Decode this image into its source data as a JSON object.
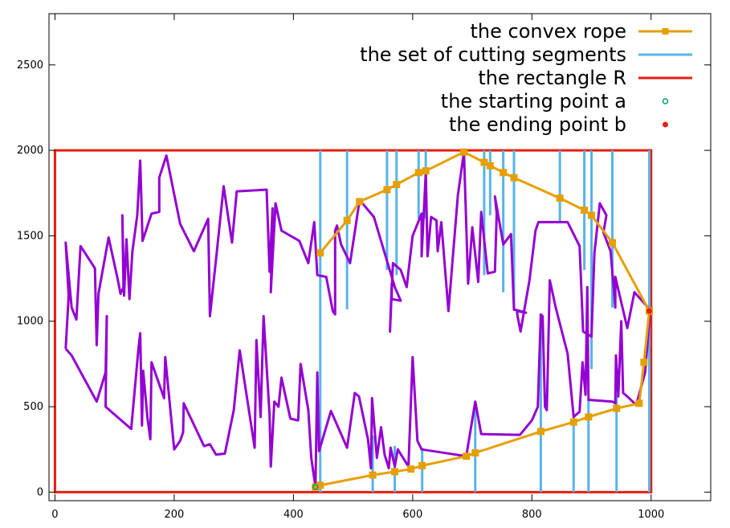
{
  "chart_data": {
    "type": "line",
    "xlim": [
      -10,
      1100
    ],
    "ylim": [
      -50,
      2800
    ],
    "x_ticks": [
      0,
      200,
      400,
      600,
      800,
      1000
    ],
    "y_ticks": [
      0,
      500,
      1000,
      1500,
      2000,
      2500
    ],
    "grid": false,
    "legend_position": "top-right",
    "colors": {
      "rope": "#e69f00",
      "segments": "#56b4e9",
      "rectangle": "#e51e10",
      "polygon": "#9400d3",
      "start": "#009e73",
      "end": "#e51e10"
    },
    "legend": [
      {
        "label": "the convex rope",
        "kind": "line-square"
      },
      {
        "label": "the set of cutting segments",
        "kind": "line"
      },
      {
        "label": "the rectangle R",
        "kind": "line"
      },
      {
        "label": "the starting point a",
        "kind": "open-circle"
      },
      {
        "label": "the ending point b",
        "kind": "dot"
      }
    ],
    "rectangle": {
      "x0": 0,
      "y0": 0,
      "x1": 1000,
      "y1": 2000
    },
    "polygon_upper": [
      [
        18,
        840
      ],
      [
        23,
        1150
      ],
      [
        18,
        1460
      ],
      [
        28,
        1080
      ],
      [
        36,
        1010
      ],
      [
        43,
        1440
      ],
      [
        67,
        1310
      ],
      [
        70,
        860
      ],
      [
        73,
        1160
      ],
      [
        90,
        1490
      ],
      [
        105,
        1250
      ],
      [
        110,
        1160
      ],
      [
        115,
        1200
      ],
      [
        113,
        1620
      ],
      [
        116,
        1150
      ],
      [
        120,
        1480
      ],
      [
        125,
        1130
      ],
      [
        130,
        1410
      ],
      [
        138,
        1620
      ],
      [
        143,
        1940
      ],
      [
        147,
        1470
      ],
      [
        162,
        1630
      ],
      [
        175,
        1640
      ],
      [
        175,
        1840
      ],
      [
        187,
        1970
      ],
      [
        210,
        1570
      ],
      [
        233,
        1410
      ],
      [
        257,
        1600
      ],
      [
        260,
        1030
      ],
      [
        272,
        1420
      ],
      [
        283,
        1790
      ],
      [
        297,
        1460
      ],
      [
        305,
        1760
      ],
      [
        355,
        1770
      ],
      [
        360,
        1290
      ],
      [
        365,
        1660
      ],
      [
        362,
        1170
      ],
      [
        370,
        1690
      ],
      [
        380,
        1530
      ],
      [
        410,
        1470
      ],
      [
        425,
        1340
      ],
      [
        435,
        1580
      ],
      [
        440,
        1270
      ],
      [
        455,
        1260
      ],
      [
        466,
        1060
      ],
      [
        470,
        1040
      ],
      [
        470,
        1530
      ],
      [
        473,
        1560
      ],
      [
        480,
        1450
      ],
      [
        495,
        1340
      ],
      [
        511,
        1710
      ],
      [
        535,
        1610
      ],
      [
        570,
        1200
      ],
      [
        580,
        1120
      ],
      [
        565,
        1130
      ],
      [
        565,
        1220
      ],
      [
        562,
        940
      ],
      [
        567,
        1340
      ],
      [
        580,
        1300
      ],
      [
        590,
        1200
      ],
      [
        600,
        1500
      ],
      [
        615,
        1630
      ],
      [
        615,
        1380
      ],
      [
        622,
        1870
      ],
      [
        625,
        1380
      ],
      [
        631,
        1610
      ],
      [
        640,
        1590
      ],
      [
        642,
        1410
      ],
      [
        648,
        1580
      ],
      [
        660,
        1060
      ],
      [
        676,
        1740
      ],
      [
        686,
        1990
      ],
      [
        693,
        1220
      ],
      [
        700,
        1550
      ],
      [
        710,
        1230
      ],
      [
        715,
        1640
      ],
      [
        726,
        1280
      ],
      [
        738,
        1290
      ],
      [
        741,
        1630
      ],
      [
        738,
        1730
      ],
      [
        752,
        1450
      ],
      [
        765,
        1510
      ],
      [
        770,
        1070
      ],
      [
        790,
        1050
      ],
      [
        775,
        1060
      ],
      [
        776,
        1030
      ],
      [
        781,
        940
      ],
      [
        796,
        1240
      ],
      [
        806,
        1530
      ],
      [
        811,
        1580
      ],
      [
        860,
        1580
      ],
      [
        880,
        1440
      ],
      [
        886,
        940
      ],
      [
        900,
        910
      ],
      [
        905,
        1400
      ],
      [
        914,
        1690
      ],
      [
        925,
        1620
      ],
      [
        920,
        1520
      ],
      [
        932,
        1410
      ],
      [
        940,
        1080
      ],
      [
        940,
        1260
      ],
      [
        960,
        960
      ],
      [
        972,
        1170
      ],
      [
        1000,
        1060
      ]
    ],
    "polygon_lower": [
      [
        18,
        840
      ],
      [
        28,
        800
      ],
      [
        70,
        530
      ],
      [
        85,
        700
      ],
      [
        87,
        1030
      ],
      [
        85,
        500
      ],
      [
        128,
        370
      ],
      [
        140,
        840
      ],
      [
        143,
        930
      ],
      [
        146,
        390
      ],
      [
        148,
        710
      ],
      [
        155,
        440
      ],
      [
        160,
        310
      ],
      [
        162,
        760
      ],
      [
        183,
        550
      ],
      [
        185,
        790
      ],
      [
        200,
        250
      ],
      [
        210,
        300
      ],
      [
        215,
        350
      ],
      [
        216,
        520
      ],
      [
        250,
        270
      ],
      [
        260,
        280
      ],
      [
        270,
        220
      ],
      [
        285,
        225
      ],
      [
        300,
        480
      ],
      [
        310,
        830
      ],
      [
        335,
        260
      ],
      [
        338,
        890
      ],
      [
        345,
        440
      ],
      [
        350,
        1030
      ],
      [
        360,
        450
      ],
      [
        362,
        150
      ],
      [
        368,
        530
      ],
      [
        375,
        500
      ],
      [
        380,
        670
      ],
      [
        395,
        430
      ],
      [
        408,
        420
      ],
      [
        412,
        750
      ],
      [
        425,
        480
      ],
      [
        430,
        200
      ],
      [
        437,
        30
      ],
      [
        440,
        700
      ],
      [
        443,
        240
      ],
      [
        463,
        475
      ],
      [
        490,
        260
      ],
      [
        503,
        580
      ],
      [
        510,
        560
      ],
      [
        525,
        310
      ],
      [
        530,
        140
      ],
      [
        532,
        550
      ],
      [
        540,
        200
      ],
      [
        547,
        380
      ],
      [
        553,
        220
      ],
      [
        560,
        140
      ],
      [
        563,
        260
      ],
      [
        570,
        150
      ],
      [
        575,
        250
      ],
      [
        593,
        150
      ],
      [
        600,
        790
      ],
      [
        608,
        300
      ],
      [
        615,
        250
      ],
      [
        690,
        210
      ],
      [
        705,
        530
      ],
      [
        715,
        340
      ],
      [
        780,
        335
      ],
      [
        800,
        420
      ],
      [
        810,
        500
      ],
      [
        815,
        1040
      ],
      [
        818,
        1030
      ],
      [
        822,
        500
      ],
      [
        825,
        480
      ],
      [
        830,
        1240
      ],
      [
        840,
        1080
      ],
      [
        860,
        810
      ],
      [
        870,
        440
      ],
      [
        880,
        470
      ],
      [
        885,
        760
      ],
      [
        890,
        570
      ],
      [
        893,
        1200
      ],
      [
        895,
        540
      ],
      [
        935,
        530
      ],
      [
        940,
        520
      ],
      [
        941,
        800
      ],
      [
        945,
        560
      ],
      [
        950,
        1000
      ],
      [
        953,
        580
      ],
      [
        960,
        560
      ],
      [
        975,
        510
      ],
      [
        990,
        700
      ],
      [
        998,
        1050
      ],
      [
        1000,
        1060
      ]
    ],
    "convex_rope": [
      [
        437,
        30
      ],
      [
        445,
        40
      ],
      [
        533,
        100
      ],
      [
        570,
        120
      ],
      [
        597,
        135
      ],
      [
        616,
        155
      ],
      [
        690,
        210
      ],
      [
        705,
        230
      ],
      [
        815,
        355
      ],
      [
        870,
        410
      ],
      [
        895,
        440
      ],
      [
        942,
        490
      ],
      [
        980,
        520
      ],
      [
        988,
        760
      ],
      [
        997,
        1060
      ],
      [
        935,
        1460
      ],
      [
        900,
        1620
      ],
      [
        888,
        1650
      ],
      [
        847,
        1720
      ],
      [
        770,
        1840
      ],
      [
        752,
        1870
      ],
      [
        730,
        1910
      ],
      [
        720,
        1930
      ],
      [
        686,
        1990
      ],
      [
        622,
        1880
      ],
      [
        610,
        1870
      ],
      [
        573,
        1800
      ],
      [
        557,
        1770
      ],
      [
        511,
        1700
      ],
      [
        490,
        1590
      ],
      [
        445,
        1400
      ]
    ],
    "cutting_segments": [
      {
        "x": 445,
        "y0": 0,
        "y1": 2000
      },
      {
        "x": 490,
        "y0": 1070,
        "y1": 2000
      },
      {
        "x": 533,
        "y0": 0,
        "y1": 330
      },
      {
        "x": 557,
        "y0": 1300,
        "y1": 2000
      },
      {
        "x": 573,
        "y0": 1270,
        "y1": 2000
      },
      {
        "x": 570,
        "y0": 0,
        "y1": 270
      },
      {
        "x": 610,
        "y0": 1600,
        "y1": 2000
      },
      {
        "x": 616,
        "y0": 0,
        "y1": 260
      },
      {
        "x": 622,
        "y0": 1600,
        "y1": 2000
      },
      {
        "x": 705,
        "y0": 0,
        "y1": 500
      },
      {
        "x": 720,
        "y0": 1270,
        "y1": 2000
      },
      {
        "x": 730,
        "y0": 1620,
        "y1": 2000
      },
      {
        "x": 752,
        "y0": 1170,
        "y1": 2000
      },
      {
        "x": 770,
        "y0": 1060,
        "y1": 2000
      },
      {
        "x": 815,
        "y0": 0,
        "y1": 1040
      },
      {
        "x": 847,
        "y0": 1580,
        "y1": 2000
      },
      {
        "x": 870,
        "y0": 0,
        "y1": 440
      },
      {
        "x": 888,
        "y0": 1300,
        "y1": 2000
      },
      {
        "x": 895,
        "y0": 0,
        "y1": 540
      },
      {
        "x": 900,
        "y0": 720,
        "y1": 2000
      },
      {
        "x": 935,
        "y0": 1080,
        "y1": 2000
      },
      {
        "x": 942,
        "y0": 0,
        "y1": 570
      },
      {
        "x": 997,
        "y0": 0,
        "y1": 2000
      }
    ],
    "start_point": [
      437,
      30
    ],
    "end_point": [
      997,
      1060
    ]
  }
}
